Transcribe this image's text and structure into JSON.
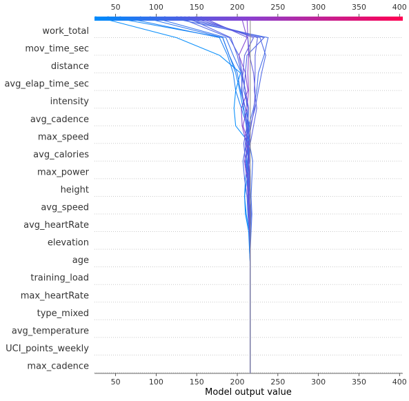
{
  "chart_data": {
    "type": "line",
    "xlabel": "Model output value",
    "xlim": [
      24,
      404
    ],
    "x_ticks": [
      50,
      100,
      150,
      200,
      250,
      300,
      350,
      400
    ],
    "base_value": 216,
    "colors": {
      "low": "#1e88e5",
      "high": "#ff0052"
    },
    "features": [
      "work_total",
      "mov_time_sec",
      "distance",
      "avg_elap_time_sec",
      "intensity",
      "avg_cadence",
      "max_speed",
      "avg_calories",
      "max_power",
      "height",
      "avg_speed",
      "avg_heartRate",
      "elevation",
      "age",
      "training_load",
      "max_heartRate",
      "type_mixed",
      "avg_temperature",
      "UCI_points_weekly",
      "max_cadence"
    ],
    "series": [
      {
        "final": 25,
        "values": [
          216,
          216,
          216,
          216,
          216,
          216,
          216,
          216,
          216,
          215,
          211,
          209,
          212,
          209,
          215,
          198,
          196,
          198,
          204,
          178,
          125,
          25
        ]
      },
      {
        "final": 40,
        "values": [
          216,
          216,
          216,
          216,
          216,
          216,
          216,
          216,
          215,
          214,
          210,
          209,
          210,
          213,
          214,
          214,
          207,
          203,
          198,
          190,
          182,
          40
        ]
      },
      {
        "final": 55,
        "values": [
          216,
          216,
          216,
          216,
          216,
          216,
          216,
          216,
          215,
          215,
          214,
          214,
          213,
          211,
          213,
          212,
          205,
          198,
          195,
          188,
          178,
          55
        ]
      },
      {
        "final": 80,
        "values": [
          216,
          216,
          216,
          216,
          216,
          216,
          216,
          216,
          216,
          215,
          214,
          213,
          214,
          212,
          210,
          215,
          210,
          204,
          200,
          190,
          182,
          80
        ]
      },
      {
        "final": 92,
        "values": [
          216,
          216,
          216,
          216,
          216,
          216,
          216,
          216,
          216,
          216,
          216,
          214,
          212,
          215,
          213,
          211,
          208,
          206,
          205,
          195,
          186,
          92
        ]
      },
      {
        "final": 125,
        "values": [
          216,
          216,
          216,
          216,
          216,
          216,
          216,
          216,
          216,
          215,
          213,
          212,
          209,
          207,
          211,
          214,
          212,
          210,
          206,
          202,
          190,
          125
        ]
      },
      {
        "final": 135,
        "values": [
          216,
          216,
          216,
          216,
          216,
          216,
          216,
          216,
          216,
          215,
          214,
          215,
          213,
          210,
          208,
          212,
          214,
          210,
          205,
          200,
          192,
          135
        ]
      },
      {
        "final": 205,
        "values": [
          216,
          216,
          216,
          216,
          216,
          216,
          216,
          216,
          216,
          216,
          215,
          214,
          216,
          214,
          211,
          206,
          205,
          213,
          210,
          202,
          212,
          205
        ]
      },
      {
        "final": 212,
        "values": [
          216,
          216,
          216,
          216,
          216,
          216,
          216,
          216,
          216,
          216,
          215,
          213,
          212,
          209,
          214,
          207,
          212,
          214,
          213,
          214,
          213,
          212
        ]
      },
      {
        "final": 110,
        "values": [
          216,
          216,
          216,
          216,
          216,
          216,
          216,
          216,
          216,
          217,
          218,
          217,
          218,
          219,
          215,
          214,
          220,
          224,
          226,
          233,
          238,
          110
        ]
      },
      {
        "final": 125,
        "values": [
          216,
          216,
          216,
          216,
          216,
          216,
          216,
          216,
          216,
          216,
          216,
          216,
          216,
          214,
          212,
          216,
          222,
          226,
          230,
          235,
          228,
          125
        ]
      },
      {
        "final": 140,
        "values": [
          216,
          216,
          216,
          216,
          216,
          216,
          216,
          216,
          216,
          216,
          215,
          214,
          215,
          213,
          216,
          220,
          224,
          221,
          222,
          222,
          225,
          140
        ]
      },
      {
        "final": 155,
        "values": [
          216,
          216,
          216,
          216,
          216,
          216,
          216,
          216,
          216,
          216,
          216,
          214,
          212,
          215,
          214,
          217,
          221,
          222,
          220,
          215,
          213,
          155
        ]
      },
      {
        "final": 130,
        "values": [
          216,
          216,
          216,
          216,
          216,
          216,
          216,
          216,
          216,
          216,
          217,
          216,
          214,
          212,
          210,
          213,
          214,
          208,
          210,
          212,
          233,
          130
        ]
      },
      {
        "final": 148,
        "values": [
          216,
          216,
          216,
          216,
          216,
          216,
          216,
          216,
          216,
          215,
          214,
          213,
          215,
          214,
          216,
          212,
          210,
          205,
          207,
          209,
          220,
          148
        ]
      }
    ]
  }
}
